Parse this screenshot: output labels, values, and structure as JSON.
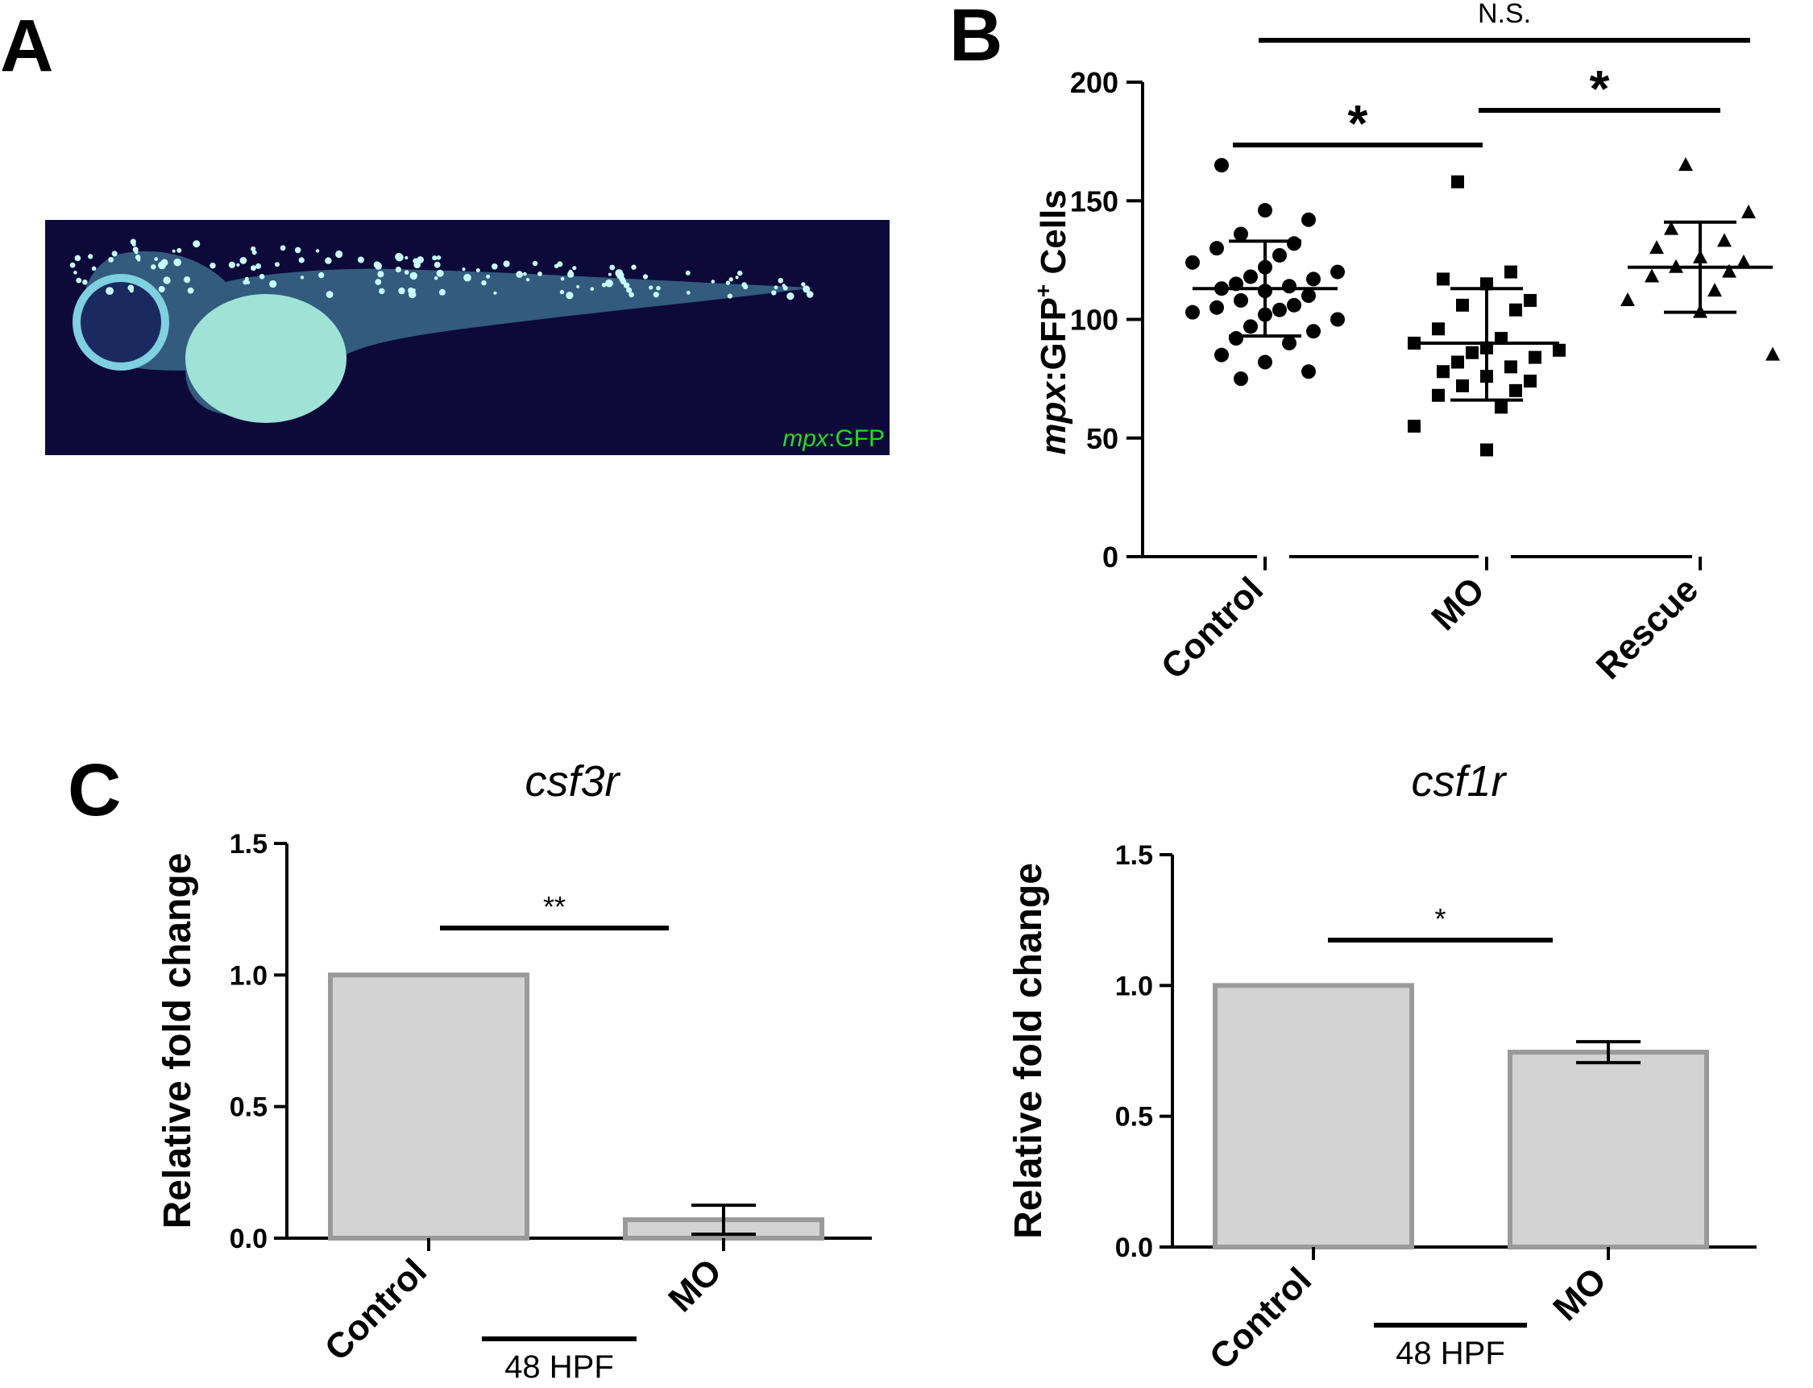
{
  "panel_labels": {
    "a": "A",
    "b": "B",
    "c": "C"
  },
  "photo": {
    "label_italic": "mpx",
    "label_rest": ":GFP",
    "label_color": "#22dd22",
    "background_color": "#0d0a3a",
    "embryo_color": "#9fe3d6"
  },
  "chart_data": [
    {
      "type": "scatter",
      "panel": "B",
      "ylabel_italic": "mpx",
      "ylabel_rest": ":GFP",
      "ylabel_sup": "+",
      "ylabel_tail": " Cells",
      "categories": [
        "Control",
        "MO",
        "Rescue"
      ],
      "ylim": [
        0,
        200
      ],
      "yticks": [
        "0",
        "50",
        "100",
        "150",
        "200"
      ],
      "marker_shapes": [
        "circle",
        "square",
        "triangle"
      ],
      "series": [
        {
          "category": "Control",
          "mean": 113,
          "sd_upper": 133,
          "sd_lower": 93,
          "values": [
            165,
            146,
            142,
            136,
            132,
            130,
            127,
            124,
            122,
            120,
            118,
            117,
            115,
            114,
            113,
            112,
            110,
            108,
            106,
            105,
            104,
            103,
            102,
            100,
            97,
            95,
            92,
            90,
            85,
            82,
            78,
            75
          ]
        },
        {
          "category": "MO",
          "mean": 90,
          "sd_upper": 113,
          "sd_lower": 66,
          "values": [
            158,
            120,
            117,
            115,
            108,
            106,
            104,
            96,
            92,
            90,
            88,
            87,
            86,
            84,
            82,
            80,
            78,
            76,
            74,
            72,
            70,
            68,
            63,
            55,
            45
          ]
        },
        {
          "category": "Rescue",
          "mean": 122,
          "sd_upper": 141,
          "sd_lower": 103,
          "values": [
            165,
            145,
            138,
            133,
            130,
            126,
            124,
            122,
            120,
            118,
            112,
            108,
            103,
            85
          ]
        }
      ],
      "annotations": [
        {
          "text": "N.S.",
          "from": "Control",
          "to": "Rescue"
        },
        {
          "text": "*",
          "from": "Control",
          "to": "MO"
        },
        {
          "text": "*",
          "from": "MO",
          "to": "Rescue"
        }
      ]
    },
    {
      "type": "bar",
      "panel": "C-left",
      "title": "csf3r",
      "ylabel": "Relative fold change",
      "categories": [
        "Control",
        "MO"
      ],
      "values": [
        1.0,
        0.07
      ],
      "errors": [
        0,
        0.055
      ],
      "ylim": [
        0,
        1.5
      ],
      "yticks": [
        "0.0",
        "0.5",
        "1.0",
        "1.5"
      ],
      "group_label": "48 HPF",
      "significance": "**",
      "bar_fill": "#d3d3d3",
      "bar_stroke": "#9a9a9a"
    },
    {
      "type": "bar",
      "panel": "C-right",
      "title": "csf1r",
      "ylabel": "Relative fold change",
      "categories": [
        "Control",
        "MO"
      ],
      "values": [
        1.0,
        0.745
      ],
      "errors": [
        0,
        0.04
      ],
      "ylim": [
        0,
        1.5
      ],
      "yticks": [
        "0.0",
        "0.5",
        "1.0",
        "1.5"
      ],
      "group_label": "48 HPF",
      "significance": "*",
      "bar_fill": "#d3d3d3",
      "bar_stroke": "#9a9a9a"
    }
  ]
}
